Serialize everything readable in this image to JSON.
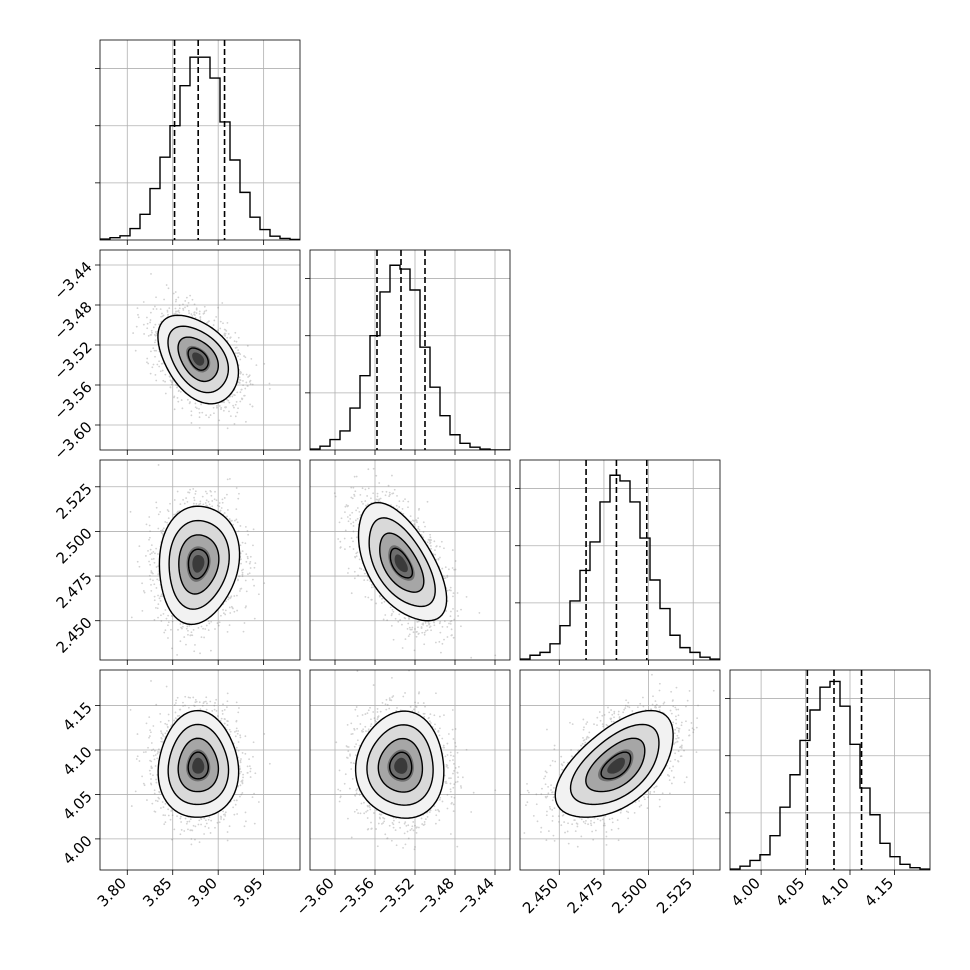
{
  "chart_data": {
    "type": "corner",
    "title": "",
    "colors": {
      "hist": "#000000",
      "contour": "#000000",
      "samples": "#7f7f7f",
      "grid": "#b0b0b0",
      "frame": "#000000",
      "background": "#ffffff"
    },
    "grid": true,
    "parameters": [
      {
        "label": "",
        "range": [
          3.77,
          3.99
        ],
        "ticks": [
          3.8,
          3.85,
          3.9,
          3.95
        ],
        "tick_labels": [
          "3.80",
          "3.85",
          "3.90",
          "3.95"
        ],
        "quantiles": [
          3.852,
          3.878,
          3.907
        ],
        "hist_ylim": [
          0,
          1.05
        ],
        "hist_ticks": [
          0.3,
          0.6,
          0.9
        ],
        "hist": [
          0.005,
          0.012,
          0.022,
          0.06,
          0.135,
          0.27,
          0.435,
          0.6,
          0.81,
          0.96,
          0.96,
          0.85,
          0.62,
          0.42,
          0.25,
          0.12,
          0.055,
          0.02,
          0.008,
          0.003
        ]
      },
      {
        "label": "",
        "range": [
          -3.625,
          -3.425
        ],
        "ticks": [
          -3.6,
          -3.56,
          -3.52,
          -3.48,
          -3.44
        ],
        "tick_labels": [
          "−3.60",
          "−3.56",
          "−3.52",
          "−3.48",
          "−3.44"
        ],
        "quantiles": [
          -3.558,
          -3.534,
          -3.51
        ],
        "hist_ylim": [
          0,
          1.05
        ],
        "hist_ticks": [
          0.3,
          0.6,
          0.9
        ],
        "hist": [
          0.005,
          0.02,
          0.055,
          0.1,
          0.22,
          0.39,
          0.6,
          0.83,
          0.97,
          0.95,
          0.84,
          0.54,
          0.33,
          0.18,
          0.08,
          0.035,
          0.015,
          0.005,
          0.0,
          0.0
        ]
      },
      {
        "label": "",
        "range": [
          2.428,
          2.54
        ],
        "ticks": [
          2.45,
          2.475,
          2.5,
          2.525
        ],
        "tick_labels": [
          "2.450",
          "2.475",
          "2.500",
          "2.525"
        ],
        "quantiles": [
          2.465,
          2.482,
          2.499
        ],
        "hist_ylim": [
          0,
          1.05
        ],
        "hist_ticks": [
          0.3,
          0.6,
          0.9
        ],
        "hist": [
          0.005,
          0.025,
          0.04,
          0.085,
          0.18,
          0.31,
          0.47,
          0.62,
          0.83,
          0.97,
          0.94,
          0.83,
          0.64,
          0.42,
          0.27,
          0.13,
          0.065,
          0.04,
          0.015,
          0.005
        ]
      },
      {
        "label": "",
        "range": [
          3.965,
          4.19
        ],
        "ticks": [
          4.0,
          4.05,
          4.1,
          4.15
        ],
        "tick_labels": [
          "4.00",
          "4.05",
          "4.10",
          "4.15"
        ],
        "quantiles": [
          4.052,
          4.082,
          4.113
        ],
        "hist_ylim": [
          0,
          1.05
        ],
        "hist_ticks": [
          0.3,
          0.6,
          0.9
        ],
        "hist": [
          0.005,
          0.02,
          0.05,
          0.08,
          0.18,
          0.33,
          0.5,
          0.68,
          0.84,
          0.96,
          0.99,
          0.86,
          0.66,
          0.43,
          0.29,
          0.14,
          0.07,
          0.03,
          0.012,
          0.005
        ]
      }
    ],
    "pairs": [
      {
        "x": 0,
        "y": 1,
        "mean": [
          3.878,
          -3.534
        ],
        "sd": [
          0.022,
          0.022
        ],
        "rho": -0.4
      },
      {
        "x": 0,
        "y": 2,
        "mean": [
          3.878,
          2.482
        ],
        "sd": [
          0.022,
          0.0165
        ],
        "rho": 0.1
      },
      {
        "x": 1,
        "y": 2,
        "mean": [
          -3.534,
          2.482
        ],
        "sd": [
          0.022,
          0.0165
        ],
        "rho": -0.55
      },
      {
        "x": 0,
        "y": 3,
        "mean": [
          3.878,
          4.082
        ],
        "sd": [
          0.022,
          0.03
        ],
        "rho": 0.0
      },
      {
        "x": 1,
        "y": 3,
        "mean": [
          -3.534,
          4.082
        ],
        "sd": [
          0.022,
          0.03
        ],
        "rho": 0.0
      },
      {
        "x": 2,
        "y": 3,
        "mean": [
          2.482,
          4.082
        ],
        "sd": [
          0.0165,
          0.03
        ],
        "rho": 0.55
      }
    ],
    "contour_levels_sigma": [
      0.5,
      1.0,
      1.5,
      2.0
    ]
  }
}
